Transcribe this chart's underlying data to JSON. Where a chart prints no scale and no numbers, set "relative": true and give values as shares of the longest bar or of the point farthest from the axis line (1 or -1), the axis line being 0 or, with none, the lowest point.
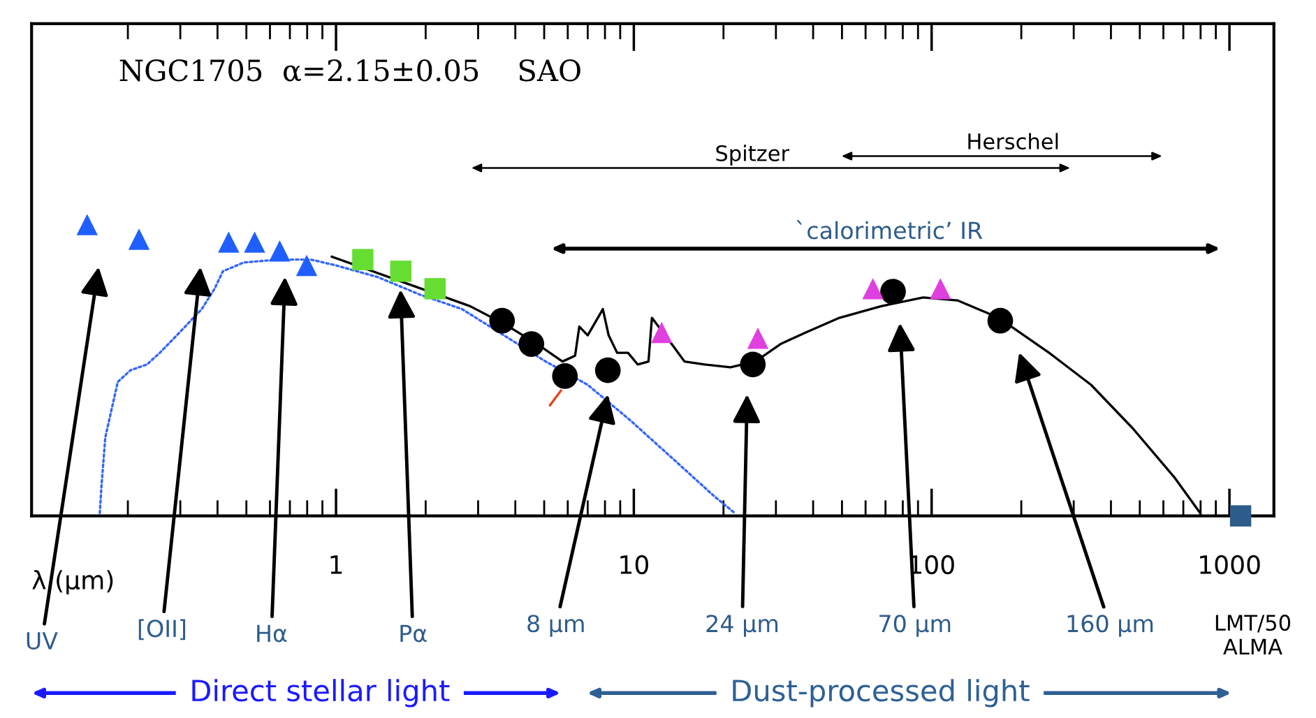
{
  "chart_data": {
    "type": "scatter",
    "title": "NGC1705  α=2.15±0.05    SAO",
    "xlabel": "λ (µm)",
    "relative": true,
    "log": "x",
    "xlim": [
      0.095,
      1410
    ],
    "xticks": [
      1,
      10,
      100,
      1000
    ],
    "grid": false,
    "series": [
      {
        "type": "line",
        "color": "#3366ff",
        "line_style": "dotted",
        "marker": "none",
        "x": [
          0.161,
          0.163,
          0.168,
          0.185,
          0.204,
          0.232,
          0.256,
          0.292,
          0.354,
          0.391,
          0.417,
          0.49,
          0.636,
          0.823,
          1,
          1.38,
          1.91,
          2.65,
          5.06,
          7.0,
          9.68,
          13.4,
          18.5,
          21.8
        ],
        "values": [
          0.01,
          0.1,
          0.27,
          0.46,
          0.5,
          0.52,
          0.56,
          0.62,
          0.71,
          0.78,
          0.84,
          0.87,
          0.88,
          0.88,
          0.86,
          0.82,
          0.76,
          0.71,
          0.53,
          0.45,
          0.33,
          0.2,
          0.07,
          0.01
        ]
      },
      {
        "type": "line",
        "color": "#e8401c",
        "line_style": "solid",
        "marker": "none",
        "x": [
          5.23,
          5.69
        ],
        "values": [
          0.38,
          0.43
        ]
      },
      {
        "type": "line",
        "color": "#000000",
        "line_style": "solid",
        "marker": "none",
        "x": [
          0.968,
          2.82,
          3.66,
          4.74,
          5.76,
          6.35,
          6.56,
          7.0,
          7.57,
          7.87,
          8.23,
          8.79,
          9.56,
          10.3,
          11.2,
          11.5,
          13.4,
          14.8,
          17.3,
          21.1,
          25.6,
          31.1,
          37.8,
          49.0,
          67.7,
          93.7,
          122,
          168,
          248,
          343,
          474,
          656,
          797
        ],
        "values": [
          0.89,
          0.72,
          0.66,
          0.59,
          0.53,
          0.55,
          0.65,
          0.62,
          0.68,
          0.71,
          0.62,
          0.56,
          0.56,
          0.52,
          0.53,
          0.68,
          0.59,
          0.53,
          0.52,
          0.51,
          0.53,
          0.59,
          0.63,
          0.68,
          0.72,
          0.75,
          0.74,
          0.68,
          0.56,
          0.45,
          0.3,
          0.13,
          0.01
        ]
      },
      {
        "color": "#1f5fff",
        "marker": "triangle",
        "x": [
          0.146,
          0.218,
          0.436,
          0.533,
          0.647,
          0.797
        ],
        "values": [
          1.0,
          0.95,
          0.94,
          0.94,
          0.91,
          0.86
        ]
      },
      {
        "color": "#66dd33",
        "marker": "square",
        "x": [
          1.23,
          1.65,
          2.15
        ],
        "values": [
          0.88,
          0.84,
          0.78
        ]
      },
      {
        "color": "#000000",
        "marker": "circle",
        "x": [
          3.61,
          4.53,
          5.87,
          8.18,
          25.1,
          74.2,
          170
        ],
        "values": [
          0.67,
          0.59,
          0.48,
          0.5,
          0.52,
          0.77,
          0.67
        ]
      },
      {
        "color": "#e040e0",
        "marker": "triangle",
        "x": [
          12.4,
          26.1,
          63.5,
          107
        ],
        "values": [
          0.63,
          0.61,
          0.78,
          0.78
        ]
      },
      {
        "color": "#2e5c8a",
        "marker": "square",
        "x": [
          1090
        ],
        "values": [
          0
        ]
      }
    ],
    "annotations": [
      "UV",
      "[OII]",
      "Hα",
      "Pα",
      "8 µm",
      "24 µm",
      "70 µm",
      "160 µm",
      "LMT/50\nALMA",
      "Spitzer",
      "Herschel",
      "`calorimetric’ IR",
      "Direct stellar light",
      "Dust-processed light"
    ]
  }
}
